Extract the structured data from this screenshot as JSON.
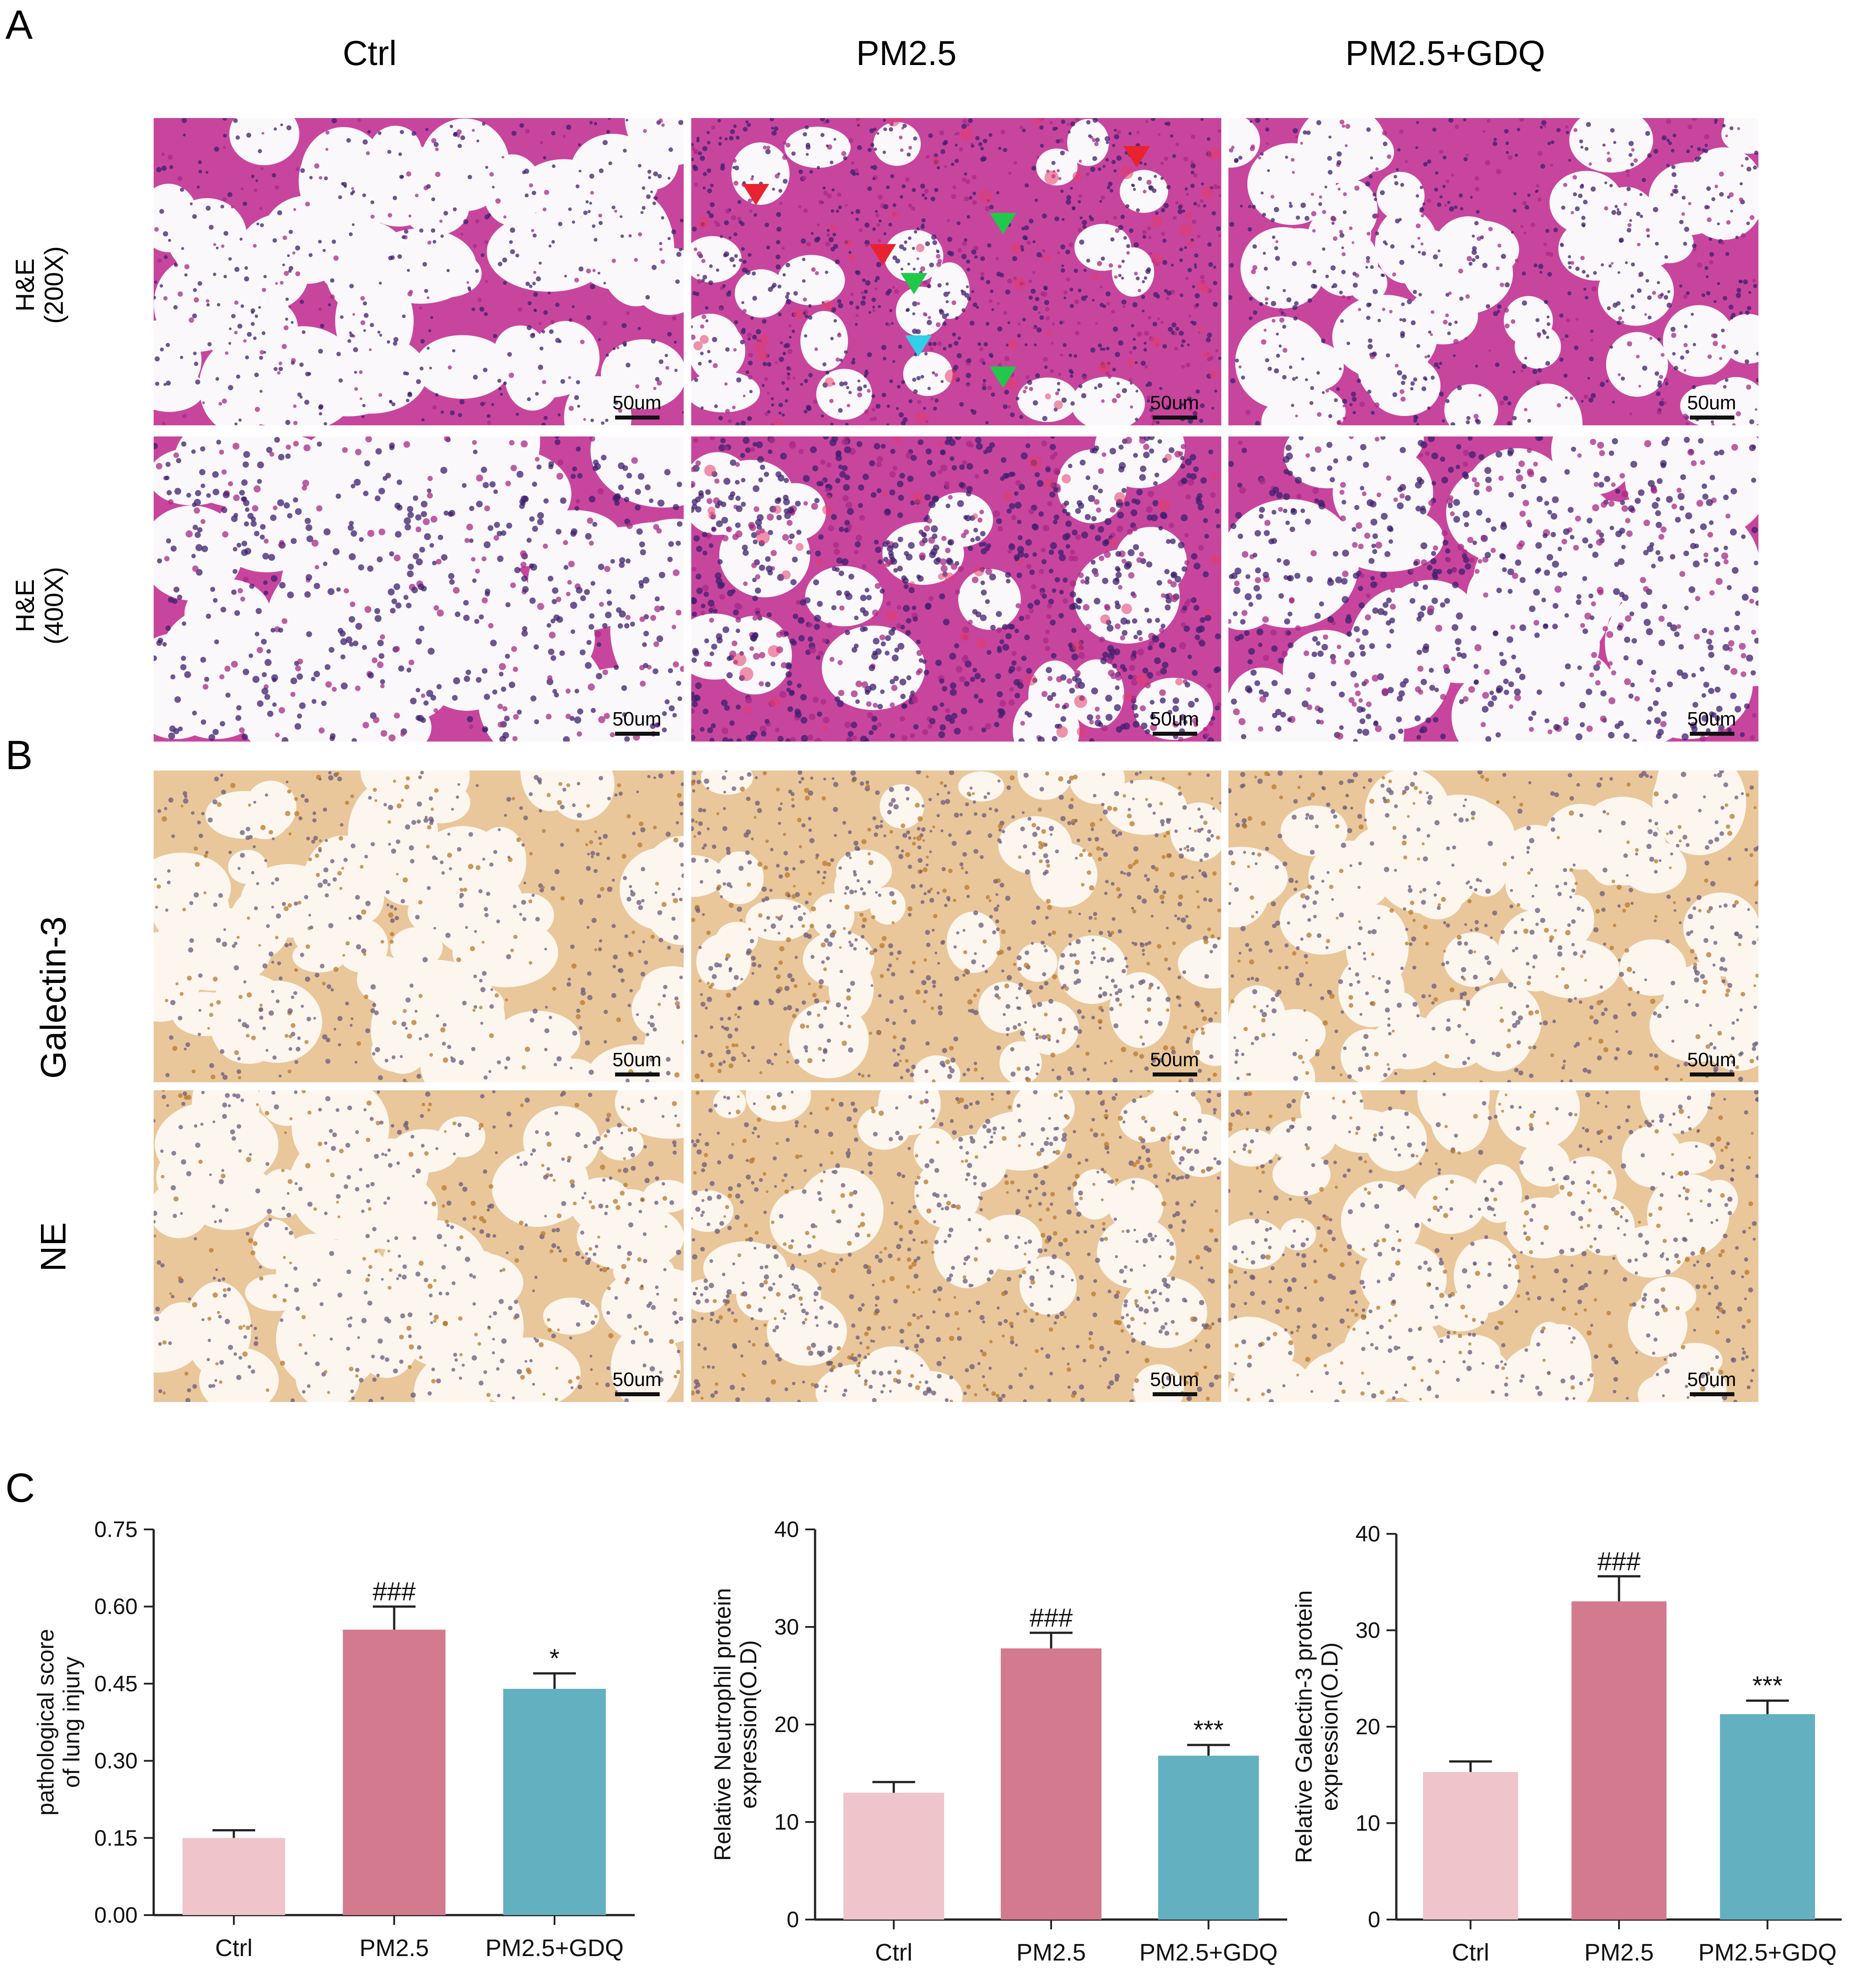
{
  "panels": {
    "a": "A",
    "b": "B",
    "c": "C"
  },
  "columns": [
    "Ctrl",
    "PM2.5",
    "PM2.5+GDQ"
  ],
  "rows": [
    {
      "label": [
        "H&E",
        "(200X)"
      ],
      "stain": "he",
      "scale": "50um"
    },
    {
      "label": [
        "H&E",
        "(400X)"
      ],
      "stain": "he",
      "scale": "50um"
    },
    {
      "label": [
        "Galectin-3"
      ],
      "stain": "ihc",
      "scale": "50um"
    },
    {
      "label": [
        "NE"
      ],
      "stain": "ihc",
      "scale": "50um"
    }
  ],
  "arrow_colors": {
    "red": "#e8232f",
    "green": "#1fc94a",
    "cyan": "#2fd0e8"
  },
  "bar_colors": [
    "#efc4cb",
    "#d47a8e",
    "#63b0c1"
  ],
  "chart_data": [
    {
      "type": "bar",
      "categories": [
        "Ctrl",
        "PM2.5",
        "PM2.5+GDQ"
      ],
      "values": [
        0.15,
        0.555,
        0.44
      ],
      "errors": [
        0.015,
        0.045,
        0.03
      ],
      "annotations": [
        "",
        "###",
        "*"
      ],
      "ylabel": [
        "pathological score",
        "of lung injury"
      ],
      "ylim": [
        0,
        0.75
      ],
      "yticks": [
        "0.00",
        "0.15",
        "0.30",
        "0.45",
        "0.60",
        "0.75"
      ]
    },
    {
      "type": "bar",
      "categories": [
        "Ctrl",
        "PM2.5",
        "PM2.5+GDQ"
      ],
      "values": [
        13,
        27.8,
        16.8
      ],
      "errors": [
        1.1,
        1.6,
        1.1
      ],
      "annotations": [
        "",
        "###",
        "***"
      ],
      "ylabel": [
        "Relative Neutrophil protein",
        "expression(O.D)"
      ],
      "ylim": [
        0,
        40
      ],
      "yticks": [
        "0",
        "10",
        "20",
        "30",
        "40"
      ]
    },
    {
      "type": "bar",
      "categories": [
        "Ctrl",
        "PM2.5",
        "PM2.5+GDQ"
      ],
      "values": [
        15.3,
        33,
        21.3
      ],
      "errors": [
        1.1,
        2.6,
        1.4
      ],
      "annotations": [
        "",
        "###",
        "***"
      ],
      "ylabel": [
        "Relative Galectin-3 protein",
        "expression(O.D)"
      ],
      "ylim": [
        0,
        40
      ],
      "yticks": [
        "0",
        "10",
        "20",
        "30",
        "40"
      ]
    }
  ]
}
